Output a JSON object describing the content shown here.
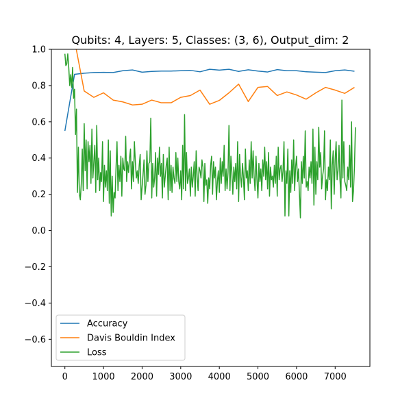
{
  "chart_data": {
    "type": "line",
    "title": "Qubits: 4, Layers: 5, Classes: (3, 6), Output_dim: 2",
    "xlabel": "",
    "ylabel": "",
    "xlim": [
      -350,
      7900
    ],
    "ylim": [
      -0.75,
      1.0
    ],
    "xticks": [
      0,
      1000,
      2000,
      3000,
      4000,
      5000,
      6000,
      7000
    ],
    "xtick_labels": [
      "0",
      "1000",
      "2000",
      "3000",
      "4000",
      "5000",
      "6000",
      "7000"
    ],
    "yticks": [
      -0.6,
      -0.4,
      -0.2,
      0.0,
      0.2,
      0.4,
      0.6,
      0.8,
      1.0
    ],
    "ytick_labels": [
      "−0.6",
      "−0.4",
      "−0.2",
      "0.0",
      "0.2",
      "0.4",
      "0.6",
      "0.8",
      "1.0"
    ],
    "grid": false,
    "legend_position": "lower-left",
    "series": [
      {
        "name": "Accuracy",
        "color": "#1f77b4",
        "x": [
          0,
          250,
          500,
          750,
          1000,
          1250,
          1500,
          1750,
          2000,
          2250,
          2500,
          2750,
          3000,
          3250,
          3500,
          3750,
          4000,
          4250,
          4500,
          4750,
          5000,
          5250,
          5500,
          5750,
          6000,
          6250,
          6500,
          6750,
          7000,
          7250,
          7500
        ],
        "y": [
          0.55,
          0.862,
          0.868,
          0.872,
          0.873,
          0.872,
          0.882,
          0.886,
          0.874,
          0.878,
          0.88,
          0.88,
          0.882,
          0.884,
          0.876,
          0.89,
          0.885,
          0.89,
          0.878,
          0.887,
          0.88,
          0.875,
          0.888,
          0.882,
          0.882,
          0.876,
          0.874,
          0.872,
          0.882,
          0.886,
          0.879
        ]
      },
      {
        "name": "Davis Bouldin Index",
        "color": "#ff7f0e",
        "x": [
          0,
          250,
          500,
          750,
          1000,
          1250,
          1500,
          1750,
          2000,
          2250,
          2500,
          2750,
          3000,
          3250,
          3500,
          3750,
          4000,
          4250,
          4500,
          4750,
          5000,
          5250,
          5500,
          5750,
          6000,
          6250,
          6500,
          6750,
          7000,
          7250,
          7500
        ],
        "y": [
          1.2,
          1.05,
          0.77,
          0.735,
          0.76,
          0.72,
          0.71,
          0.693,
          0.697,
          0.72,
          0.705,
          0.705,
          0.735,
          0.745,
          0.775,
          0.697,
          0.718,
          0.76,
          0.808,
          0.712,
          0.79,
          0.795,
          0.745,
          0.765,
          0.748,
          0.725,
          0.76,
          0.79,
          0.775,
          0.757,
          0.79
        ]
      },
      {
        "name": "Loss",
        "color": "#2ca02c",
        "x": [
          0,
          25,
          50,
          75,
          100,
          125,
          150,
          175,
          200,
          225,
          250,
          275,
          300,
          325,
          350,
          375,
          400,
          425,
          450,
          475,
          500,
          525,
          550,
          575,
          600,
          625,
          650,
          675,
          700,
          725,
          750,
          775,
          800,
          825,
          850,
          875,
          900,
          925,
          950,
          975,
          1000,
          1025,
          1050,
          1075,
          1100,
          1125,
          1150,
          1175,
          1200,
          1225,
          1250,
          1275,
          1300,
          1325,
          1350,
          1375,
          1400,
          1425,
          1450,
          1475,
          1500,
          1525,
          1550,
          1575,
          1600,
          1625,
          1650,
          1675,
          1700,
          1725,
          1750,
          1775,
          1800,
          1825,
          1850,
          1875,
          1900,
          1925,
          1950,
          1975,
          2000,
          2025,
          2050,
          2075,
          2100,
          2125,
          2150,
          2175,
          2200,
          2225,
          2250,
          2275,
          2300,
          2325,
          2350,
          2375,
          2400,
          2425,
          2450,
          2475,
          2500,
          2525,
          2550,
          2575,
          2600,
          2625,
          2650,
          2675,
          2700,
          2725,
          2750,
          2775,
          2800,
          2825,
          2850,
          2875,
          2900,
          2925,
          2950,
          2975,
          3000,
          3025,
          3050,
          3075,
          3100,
          3125,
          3150,
          3175,
          3200,
          3225,
          3250,
          3275,
          3300,
          3325,
          3350,
          3375,
          3400,
          3425,
          3450,
          3475,
          3500,
          3525,
          3550,
          3575,
          3600,
          3625,
          3650,
          3675,
          3700,
          3725,
          3750,
          3775,
          3800,
          3825,
          3850,
          3875,
          3900,
          3925,
          3950,
          3975,
          4000,
          4025,
          4050,
          4075,
          4100,
          4125,
          4150,
          4175,
          4200,
          4225,
          4250,
          4275,
          4300,
          4325,
          4350,
          4375,
          4400,
          4425,
          4450,
          4475,
          4500,
          4525,
          4550,
          4575,
          4600,
          4625,
          4650,
          4675,
          4700,
          4725,
          4750,
          4775,
          4800,
          4825,
          4850,
          4875,
          4900,
          4925,
          4950,
          4975,
          5000,
          5025,
          5050,
          5075,
          5100,
          5125,
          5150,
          5175,
          5200,
          5225,
          5250,
          5275,
          5300,
          5325,
          5350,
          5375,
          5400,
          5425,
          5450,
          5475,
          5500,
          5525,
          5550,
          5575,
          5600,
          5625,
          5650,
          5675,
          5700,
          5725,
          5750,
          5775,
          5800,
          5825,
          5850,
          5875,
          5900,
          5925,
          5950,
          5975,
          6000,
          6025,
          6050,
          6075,
          6100,
          6125,
          6150,
          6175,
          6200,
          6225,
          6250,
          6275,
          6300,
          6325,
          6350,
          6375,
          6400,
          6425,
          6450,
          6475,
          6500,
          6525,
          6550,
          6575,
          6600,
          6625,
          6650,
          6675,
          6700,
          6725,
          6750,
          6775,
          6800,
          6825,
          6850,
          6875,
          6900,
          6925,
          6950,
          6975,
          7000,
          7025,
          7050,
          7075,
          7100,
          7125,
          7150,
          7175,
          7200,
          7225,
          7250,
          7275,
          7300,
          7325,
          7350,
          7375,
          7400,
          7425,
          7450,
          7475,
          7500,
          7525
        ],
        "y": [
          0.975,
          0.91,
          0.92,
          0.975,
          0.9,
          0.8,
          0.86,
          0.79,
          0.9,
          0.73,
          0.78,
          0.53,
          0.67,
          0.21,
          0.46,
          0.2,
          0.17,
          0.26,
          0.45,
          0.22,
          0.59,
          0.33,
          0.5,
          0.23,
          0.49,
          0.38,
          0.47,
          0.26,
          0.56,
          0.29,
          0.38,
          0.47,
          0.21,
          0.58,
          0.28,
          0.4,
          0.22,
          0.32,
          0.27,
          0.49,
          0.16,
          0.36,
          0.24,
          0.33,
          0.22,
          0.5,
          0.15,
          0.44,
          0.08,
          0.3,
          0.1,
          0.21,
          0.18,
          0.35,
          0.49,
          0.22,
          0.36,
          0.27,
          0.41,
          0.19,
          0.4,
          0.34,
          0.33,
          0.52,
          0.27,
          0.38,
          0.32,
          0.4,
          0.45,
          0.23,
          0.38,
          0.27,
          0.49,
          0.38,
          0.29,
          0.33,
          0.26,
          0.36,
          0.42,
          0.17,
          0.24,
          0.31,
          0.39,
          0.2,
          0.25,
          0.44,
          0.27,
          0.37,
          0.38,
          0.62,
          0.18,
          0.37,
          0.24,
          0.29,
          0.43,
          0.19,
          0.4,
          0.31,
          0.46,
          0.3,
          0.37,
          0.18,
          0.42,
          0.24,
          0.3,
          0.36,
          0.4,
          0.17,
          0.46,
          0.22,
          0.36,
          0.21,
          0.35,
          0.29,
          0.26,
          0.43,
          0.27,
          0.4,
          0.27,
          0.23,
          0.33,
          0.17,
          0.47,
          0.23,
          0.64,
          0.22,
          0.43,
          0.26,
          0.29,
          0.34,
          0.19,
          0.35,
          0.24,
          0.3,
          0.38,
          0.19,
          0.44,
          0.3,
          0.22,
          0.35,
          0.33,
          0.29,
          0.39,
          0.35,
          0.16,
          0.37,
          0.25,
          0.28,
          0.15,
          0.29,
          0.23,
          0.36,
          0.41,
          0.2,
          0.38,
          0.29,
          0.35,
          0.17,
          0.27,
          0.33,
          0.21,
          0.4,
          0.26,
          0.38,
          0.3,
          0.47,
          0.22,
          0.34,
          0.23,
          0.32,
          0.58,
          0.22,
          0.41,
          0.32,
          0.2,
          0.35,
          0.27,
          0.37,
          0.23,
          0.49,
          0.16,
          0.42,
          0.3,
          0.24,
          0.37,
          0.29,
          0.17,
          0.45,
          0.29,
          0.33,
          0.22,
          0.39,
          0.26,
          0.49,
          0.29,
          0.44,
          0.3,
          0.22,
          0.41,
          0.28,
          0.18,
          0.37,
          0.27,
          0.34,
          0.22,
          0.39,
          0.3,
          0.46,
          0.28,
          0.38,
          0.23,
          0.43,
          0.19,
          0.35,
          0.28,
          0.3,
          0.24,
          0.36,
          0.26,
          0.41,
          0.19,
          0.46,
          0.28,
          0.34,
          0.36,
          0.27,
          0.33,
          0.49,
          0.08,
          0.33,
          0.26,
          0.45,
          0.08,
          0.33,
          0.21,
          0.39,
          0.26,
          0.5,
          0.22,
          0.35,
          0.41,
          0.27,
          0.34,
          0.2,
          0.07,
          0.38,
          0.26,
          0.41,
          0.29,
          0.55,
          0.24,
          0.27,
          0.22,
          0.35,
          0.29,
          0.38,
          0.26,
          0.56,
          0.14,
          0.46,
          0.2,
          0.38,
          0.28,
          0.57,
          0.35,
          0.43,
          0.23,
          0.3,
          0.34,
          0.55,
          0.17,
          0.28,
          0.22,
          0.35,
          0.28,
          0.5,
          0.12,
          0.36,
          0.44,
          0.2,
          0.39,
          0.49,
          0.28,
          0.33,
          0.47,
          0.28,
          0.18,
          0.72,
          0.29,
          0.49,
          0.27,
          0.25,
          0.22,
          0.35,
          0.28,
          0.47,
          0.24,
          0.6,
          0.16,
          0.22,
          0.35,
          0.57
        ]
      }
    ]
  }
}
